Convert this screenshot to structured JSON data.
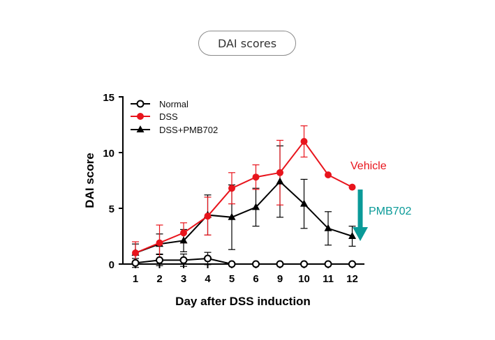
{
  "header": {
    "pill_label": "DAI scores"
  },
  "colors": {
    "normal": "#000000",
    "dss": "#e8141c",
    "treated": "#000000",
    "arrow": "#0a9a98"
  },
  "chart_data": {
    "type": "line",
    "categories": [
      "1",
      "2",
      "3",
      "4",
      "5",
      "6",
      "9",
      "10",
      "11",
      "12"
    ],
    "xlabel": "Day after DSS induction",
    "ylabel": "DAI score",
    "ylim": [
      0,
      15
    ],
    "yticks": [
      0,
      5,
      10,
      15
    ],
    "grid": false,
    "legend_position": "top-left",
    "series": [
      {
        "name": "Normal",
        "marker": "open-circle",
        "color": "#000000",
        "values": [
          0.1,
          0.35,
          0.35,
          0.5,
          0,
          0,
          0,
          0,
          0,
          0
        ],
        "error": [
          0.4,
          0.5,
          0.55,
          0.55,
          0,
          0,
          0,
          0,
          0,
          0
        ]
      },
      {
        "name": "DSS",
        "marker": "filled-circle",
        "color": "#e8141c",
        "values": [
          1.0,
          1.9,
          2.8,
          4.3,
          6.8,
          7.8,
          8.2,
          11.0,
          8.0,
          6.9
        ],
        "error": [
          1.0,
          1.6,
          0.9,
          1.7,
          1.4,
          1.1,
          2.9,
          1.4,
          0,
          0
        ]
      },
      {
        "name": "DSS+PMB702",
        "marker": "filled-triangle",
        "color": "#000000",
        "values": [
          1.0,
          1.8,
          2.1,
          4.4,
          4.2,
          5.1,
          7.4,
          5.4,
          3.2,
          2.5
        ],
        "error": [
          0.8,
          0.9,
          1.0,
          1.8,
          2.9,
          1.7,
          3.2,
          2.2,
          1.5,
          0.9
        ]
      }
    ],
    "annotations": [
      {
        "text": "Vehicle",
        "color": "#e8141c"
      },
      {
        "text": "PMB702",
        "color": "#0a9a98"
      }
    ]
  }
}
